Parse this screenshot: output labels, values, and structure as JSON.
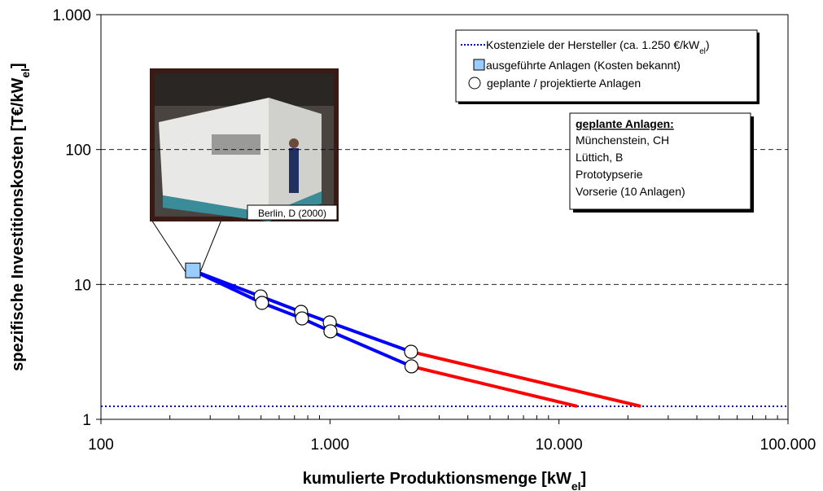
{
  "chart_data": {
    "type": "scatter",
    "x_label": [
      "kumulierte Produktionsmenge [kW",
      "el",
      "]"
    ],
    "y_label": [
      "spezifische Investitionskosten [T€/kW",
      "el",
      "]"
    ],
    "xscale": "log",
    "yscale": "log",
    "xlim": [
      100,
      100000
    ],
    "ylim": [
      1,
      1000
    ],
    "xticks": [
      100,
      {
        "value": 1000,
        "label": "1.000"
      },
      {
        "value": 10000,
        "label": "10.000"
      },
      {
        "value": 100000,
        "label": "100.000"
      }
    ],
    "xminorticks": [
      200,
      300,
      400,
      500,
      600,
      700,
      800,
      900,
      2000,
      3000,
      4000,
      5000,
      6000,
      7000,
      8000,
      9000,
      20000,
      30000,
      40000,
      50000,
      60000,
      70000,
      80000,
      90000
    ],
    "yticks": [
      1,
      10,
      100,
      {
        "value": 1000,
        "label": "1.000"
      }
    ],
    "grid": true,
    "hline": {
      "value": 1.25,
      "color": "#0000cc",
      "label": [
        "Kostenziele der Hersteller (ca. 1.250 €/kW",
        "el",
        ")"
      ]
    },
    "series": [
      {
        "name": "ausgeführte Anlagen (Kosten bekannt)",
        "marker": "square",
        "color": "#99ccff",
        "x": [
          252
        ],
        "values": [
          12.7
        ]
      },
      {
        "name": "geplante / projektierte Anlagen",
        "marker": "circle",
        "color": "#ffffff",
        "x": [
          498,
          748,
          998,
          2260,
          505,
          755,
          1005,
          2270
        ],
        "values": [
          8.15,
          6.26,
          5.23,
          3.17,
          7.3,
          5.6,
          4.49,
          2.47
        ]
      }
    ],
    "lines": [
      {
        "color": "#0000ff",
        "x": [
          252,
          498,
          748,
          998,
          2260
        ],
        "values": [
          12.7,
          8.15,
          6.26,
          5.23,
          3.17
        ]
      },
      {
        "color": "#0000ff",
        "x": [
          252,
          505,
          755,
          1005,
          2270
        ],
        "values": [
          12.7,
          7.3,
          5.6,
          4.49,
          2.47
        ]
      },
      {
        "color": "#ff0000",
        "x": [
          2260,
          22750
        ],
        "values": [
          3.17,
          1.25
        ]
      },
      {
        "color": "#ff0000",
        "x": [
          2270,
          12000
        ],
        "values": [
          2.47,
          1.25
        ]
      }
    ],
    "annotation": {
      "title": "geplante Anlagen:",
      "items": [
        "Münchenstein, CH",
        "Lüttich, B",
        "Prototypserie",
        "Vorserie (10 Anlagen)"
      ]
    },
    "photo_caption": "Berlin, D (2000)"
  }
}
